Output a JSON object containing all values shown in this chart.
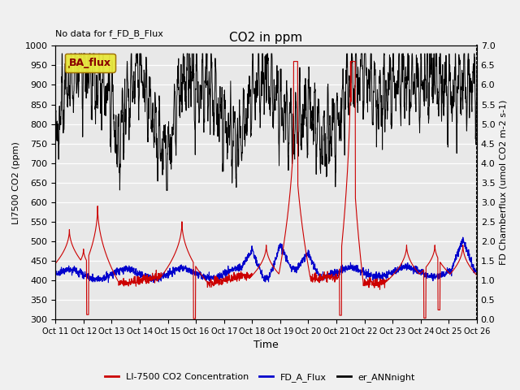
{
  "title": "CO2 in ppm",
  "top_left_text": "No data for f_FD_B_Flux",
  "ylabel_left": "LI7500 CO2 (ppm)",
  "ylabel_right": "FD Chamberflux (umol CO2 m-2 s-1)",
  "xlabel": "Time",
  "ylim_left": [
    300,
    1000
  ],
  "ylim_right": [
    0.0,
    7.0
  ],
  "yticks_left": [
    300,
    350,
    400,
    450,
    500,
    550,
    600,
    650,
    700,
    750,
    800,
    850,
    900,
    950,
    1000
  ],
  "yticks_right": [
    0.0,
    0.5,
    1.0,
    1.5,
    2.0,
    2.5,
    3.0,
    3.5,
    4.0,
    4.5,
    5.0,
    5.5,
    6.0,
    6.5,
    7.0
  ],
  "xtick_labels": [
    "Oct 11",
    "Oct 12",
    "Oct 13",
    "Oct 14",
    "Oct 15",
    "Oct 16",
    "Oct 17",
    "Oct 18",
    "Oct 19",
    "Oct 20",
    "Oct 21",
    "Oct 22",
    "Oct 23",
    "Oct 24",
    "Oct 25",
    "Oct 26"
  ],
  "legend_box_label": "BA_flux",
  "series_red_label": "LI-7500 CO2 Concentration",
  "series_blue_label": "FD_A_Flux",
  "series_black_label": "er_ANNnight",
  "red_color": "#cc0000",
  "blue_color": "#0000cc",
  "black_color": "#000000",
  "bg_color": "#e8e8e8",
  "grid_color": "#ffffff",
  "fig_bg": "#f0f0f0",
  "n_points": 2000,
  "seed": 42,
  "ba_box_face": "#e8e840",
  "ba_box_edge": "#996600",
  "ba_text_color": "#880000"
}
